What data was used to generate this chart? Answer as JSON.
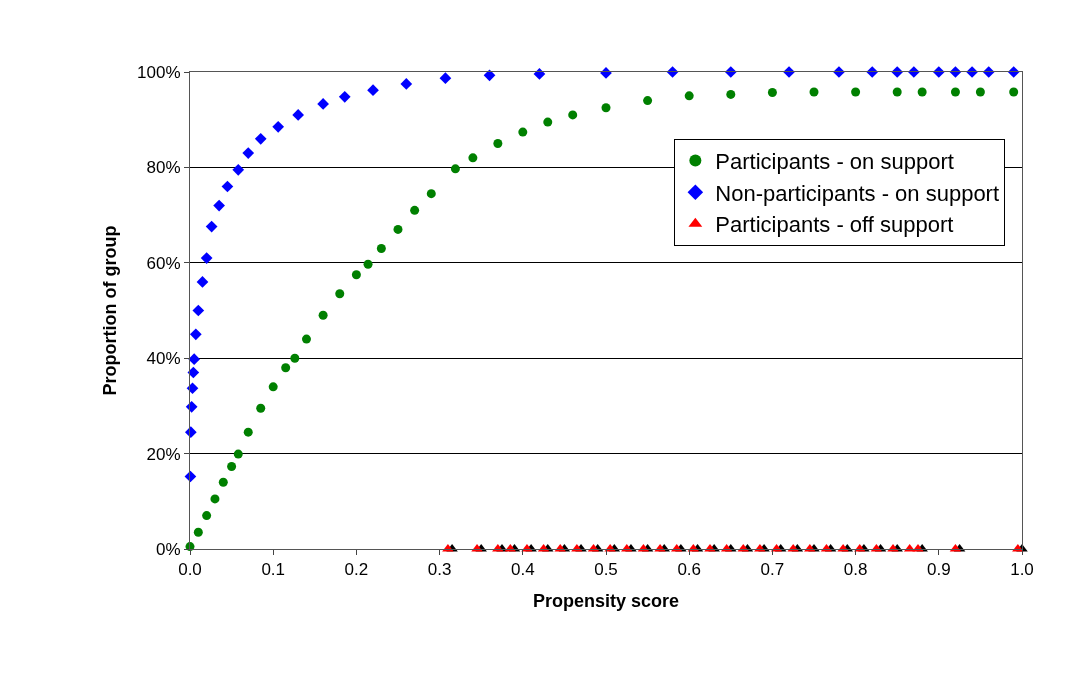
{
  "chart_data": {
    "type": "scatter",
    "xlabel": "Propensity score",
    "ylabel": "Proportion of group",
    "xlim": [
      0,
      1
    ],
    "xticks": [
      {
        "value": 0,
        "label": "0.0"
      },
      0.1,
      0.2,
      0.3,
      0.4,
      0.5,
      0.6,
      0.7,
      0.8,
      0.9,
      {
        "value": 1,
        "label": "1.0"
      }
    ],
    "ylim": [
      0,
      100
    ],
    "yticks": [
      {
        "value": 0,
        "label": "0%"
      },
      {
        "value": 20,
        "label": "20%"
      },
      {
        "value": 40,
        "label": "40%"
      },
      {
        "value": 60,
        "label": "60%"
      },
      {
        "value": 80,
        "label": "80%"
      },
      {
        "value": 100,
        "label": "100%"
      }
    ],
    "grid": "y",
    "legend": "top right",
    "series": [
      {
        "name": "Participants - on support",
        "color": "#008000",
        "marker": "circle",
        "x": [
          0,
          0.01,
          0.02,
          0.03,
          0.04,
          0.05,
          0.058,
          0.07,
          0.085,
          0.1,
          0.115,
          0.126,
          0.14,
          0.16,
          0.18,
          0.2,
          0.214,
          0.23,
          0.25,
          0.27,
          0.29,
          0.319,
          0.34,
          0.37,
          0.4,
          0.43,
          0.46,
          0.5,
          0.55,
          0.6,
          0.65,
          0.7,
          0.75,
          0.8,
          0.85,
          0.88,
          0.92,
          0.95,
          0.99
        ],
        "values": [
          0.5,
          3.5,
          7,
          10.5,
          14,
          17.3,
          19.9,
          24.5,
          29.5,
          34,
          38,
          40,
          44,
          49,
          53.5,
          57.5,
          59.7,
          63,
          67,
          71,
          74.5,
          79.7,
          82,
          85,
          87.4,
          89.5,
          91,
          92.5,
          94,
          95,
          95.3,
          95.7,
          95.8,
          95.8,
          95.8,
          95.8,
          95.8,
          95.8,
          95.8
        ]
      },
      {
        "name": "Non-participants - on support",
        "color": "#0000ff",
        "marker": "diamond",
        "x": [
          0.0005,
          0.001,
          0.002,
          0.003,
          0.004,
          0.005,
          0.007,
          0.01,
          0.015,
          0.02,
          0.026,
          0.035,
          0.045,
          0.058,
          0.07,
          0.085,
          0.106,
          0.13,
          0.16,
          0.186,
          0.22,
          0.26,
          0.307,
          0.36,
          0.42,
          0.5,
          0.58,
          0.65,
          0.72,
          0.78,
          0.82,
          0.85,
          0.87,
          0.9,
          0.92,
          0.94,
          0.96,
          0.99
        ],
        "values": [
          15.2,
          24.5,
          29.8,
          33.7,
          37,
          39.8,
          45,
          50,
          56,
          61,
          67.6,
          72,
          76,
          79.5,
          83,
          86,
          88.5,
          91,
          93.3,
          94.8,
          96.2,
          97.5,
          98.7,
          99.3,
          99.6,
          99.8,
          100,
          100,
          100,
          100,
          100,
          100,
          100,
          100,
          100,
          100,
          100,
          100
        ]
      },
      {
        "color": "#000000",
        "marker": "triangle",
        "x": [
          0.315,
          0.35,
          0.375,
          0.39,
          0.41,
          0.43,
          0.45,
          0.47,
          0.49,
          0.51,
          0.53,
          0.55,
          0.57,
          0.59,
          0.61,
          0.63,
          0.65,
          0.67,
          0.69,
          0.71,
          0.73,
          0.75,
          0.77,
          0.79,
          0.81,
          0.83,
          0.85,
          0.88,
          0.925,
          1.0
        ],
        "values": [
          0,
          0,
          0,
          0,
          0,
          0,
          0,
          0,
          0,
          0,
          0,
          0,
          0,
          0,
          0,
          0,
          0,
          0,
          0,
          0,
          0,
          0,
          0,
          0,
          0,
          0,
          0,
          0,
          0,
          0
        ]
      },
      {
        "name": "Participants - off support",
        "color": "#ff0000",
        "marker": "triangle",
        "x": [
          0.31,
          0.345,
          0.37,
          0.385,
          0.405,
          0.425,
          0.445,
          0.465,
          0.485,
          0.505,
          0.525,
          0.545,
          0.565,
          0.585,
          0.605,
          0.625,
          0.645,
          0.665,
          0.685,
          0.705,
          0.725,
          0.745,
          0.765,
          0.785,
          0.805,
          0.825,
          0.845,
          0.865,
          0.875,
          0.92,
          0.995
        ],
        "values": [
          0,
          0,
          0,
          0,
          0,
          0,
          0,
          0,
          0,
          0,
          0,
          0,
          0,
          0,
          0,
          0,
          0,
          0,
          0,
          0,
          0,
          0,
          0,
          0,
          0,
          0,
          0,
          0,
          0,
          0,
          0
        ]
      }
    ]
  }
}
